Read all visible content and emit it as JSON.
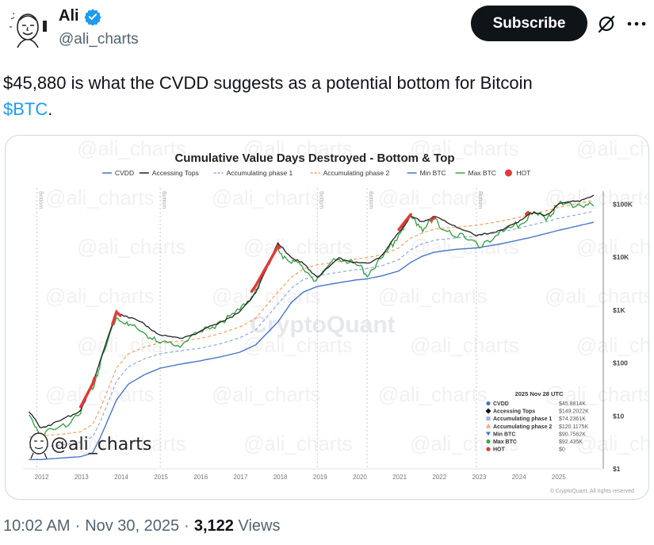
{
  "author": {
    "display_name": "Ali",
    "handle": "@ali_charts",
    "verified": true,
    "avatar_icon": "cartoon-face-avatar"
  },
  "header": {
    "subscribe_label": "Subscribe",
    "grok_icon": "grok-icon",
    "more_icon": "more-options-icon"
  },
  "tweet": {
    "text": "$45,880 is what the CVDD suggests as a potential bottom for Bitcoin",
    "cashtag": "$BTC",
    "text_suffix": "."
  },
  "meta": {
    "time": "10:02 AM",
    "date": "Nov 30, 2025",
    "separator": "·",
    "views_count": "3,122",
    "views_label": "Views"
  },
  "chart_data": {
    "type": "line",
    "title": "Cumulative Value Days Destroyed - Bottom & Top",
    "xlabel": "",
    "ylabel": "",
    "y_scale": "log",
    "ylim": [
      1,
      250000
    ],
    "grid": false,
    "legend_position": "top",
    "legend": [
      {
        "name": "CVDD",
        "color": "#4a74c9",
        "style": "solid"
      },
      {
        "name": "Accessing Tops",
        "color": "#222222",
        "style": "solid"
      },
      {
        "name": "Accumulating phase 1",
        "color": "#8fa8dc",
        "style": "dashed"
      },
      {
        "name": "Accumulating phase 2",
        "color": "#f0a060",
        "style": "dashed"
      },
      {
        "name": "Min BTC",
        "color": "#4a74c9",
        "style": "solid"
      },
      {
        "name": "Max BTC",
        "color": "#3ea34a",
        "style": "solid"
      },
      {
        "name": "HOT",
        "color": "#e03a3a",
        "style": "marker"
      }
    ],
    "x_ticks": [
      "2012",
      "2013",
      "2014",
      "2015",
      "2016",
      "2017",
      "2018",
      "2019",
      "2020",
      "2021",
      "2022",
      "2023",
      "2024",
      "2025"
    ],
    "y_ticks": [
      "$1",
      "$10",
      "$100",
      "$1K",
      "$10K",
      "$100K"
    ],
    "bottom_markers": [
      {
        "label": "Bottom",
        "x": "2011.9"
      },
      {
        "label": "Bottom",
        "x": "2015.0"
      },
      {
        "label": "Bottom",
        "x": "2018.95"
      },
      {
        "label": "Bottom",
        "x": "2020.2"
      },
      {
        "label": "Bottom",
        "x": "2022.95"
      }
    ],
    "x": [
      2011.7,
      2012.0,
      2012.5,
      2013.0,
      2013.3,
      2013.5,
      2013.9,
      2014.2,
      2014.6,
      2015.0,
      2015.5,
      2016.0,
      2016.5,
      2017.0,
      2017.4,
      2017.96,
      2018.3,
      2018.6,
      2018.95,
      2019.5,
      2019.9,
      2020.2,
      2020.6,
      2021.0,
      2021.3,
      2021.6,
      2021.9,
      2022.4,
      2022.95,
      2023.5,
      2024.0,
      2024.3,
      2024.7,
      2025.0,
      2025.5,
      2025.9
    ],
    "series": [
      {
        "name": "CVDD",
        "values": [
          1.5,
          1.5,
          1.6,
          1.7,
          2,
          4,
          20,
          40,
          60,
          80,
          95,
          110,
          130,
          160,
          220,
          600,
          1400,
          2200,
          2800,
          3300,
          3700,
          3900,
          4500,
          5500,
          8000,
          10500,
          12500,
          14000,
          15000,
          17500,
          21000,
          23500,
          28000,
          32000,
          39000,
          45881
        ]
      },
      {
        "name": "Accessing Tops",
        "values": [
          12,
          6,
          8,
          13,
          40,
          120,
          900,
          750,
          550,
          330,
          300,
          380,
          600,
          900,
          2200,
          18000,
          10000,
          7500,
          4200,
          9500,
          8000,
          7500,
          11000,
          30000,
          58000,
          48000,
          58000,
          40000,
          25000,
          32000,
          45000,
          70000,
          60000,
          100000,
          115000,
          149202
        ]
      },
      {
        "name": "Accumulating phase 1",
        "values": [
          2.5,
          2.6,
          2.8,
          3.2,
          4,
          8,
          45,
          85,
          120,
          150,
          170,
          190,
          230,
          300,
          420,
          1300,
          2600,
          3800,
          4500,
          5200,
          5800,
          6100,
          7000,
          9000,
          14000,
          18000,
          21000,
          23000,
          25000,
          29000,
          35000,
          40000,
          47000,
          54000,
          64000,
          74236
        ]
      },
      {
        "name": "Accumulating phase 2",
        "values": [
          4,
          4.2,
          4.5,
          5,
          7,
          14,
          80,
          150,
          200,
          240,
          260,
          290,
          360,
          480,
          700,
          2200,
          4200,
          6000,
          7200,
          8300,
          9200,
          9800,
          11200,
          15000,
          23000,
          29000,
          34000,
          37000,
          40000,
          47000,
          56000,
          64000,
          75000,
          87000,
          103000,
          120118
        ]
      },
      {
        "name": "Max BTC",
        "values": [
          10,
          4.5,
          6,
          13,
          35,
          100,
          800,
          500,
          380,
          220,
          240,
          360,
          620,
          950,
          2500,
          14000,
          8000,
          6200,
          3500,
          10500,
          7200,
          5000,
          9500,
          29000,
          56000,
          37000,
          48000,
          29000,
          16500,
          27000,
          42000,
          66000,
          58000,
          96000,
          104000,
          92435
        ]
      },
      {
        "name": "HOT",
        "values": [
          0,
          0,
          0,
          0,
          0,
          0,
          0,
          0,
          0,
          0,
          0,
          0,
          0,
          0,
          0,
          0,
          0,
          0,
          0,
          0,
          0,
          0,
          0,
          0,
          0,
          0,
          0,
          0,
          0,
          0,
          0,
          0,
          0,
          0,
          0,
          0
        ]
      }
    ],
    "hot_periods": [
      {
        "from": 2013.0,
        "to": 2013.35
      },
      {
        "from": 2013.8,
        "to": 2014.0
      },
      {
        "from": 2017.3,
        "to": 2018.0
      },
      {
        "from": 2021.0,
        "to": 2021.3
      },
      {
        "from": 2021.8,
        "to": 2021.9
      },
      {
        "from": 2024.2,
        "to": 2024.25
      }
    ],
    "tooltip": {
      "date": "2025 Nov 28 UTC",
      "rows": [
        {
          "label": "CVDD",
          "value": "$45.8814K",
          "marker": "circle",
          "color": "#4a74c9"
        },
        {
          "label": "Accessing Tops",
          "value": "$149.2022K",
          "marker": "diamond",
          "color": "#111111"
        },
        {
          "label": "Accumulating phase 1",
          "value": "$74.2361K",
          "marker": "square",
          "color": "#9fb2e0"
        },
        {
          "label": "Accumulating phase 2",
          "value": "$120.1175K",
          "marker": "triangle-up",
          "color": "#f0a878"
        },
        {
          "label": "Min BTC",
          "value": "$90.7562K",
          "marker": "triangle-down",
          "color": "#4a74c9"
        },
        {
          "label": "Max BTC",
          "value": "$92.435K",
          "marker": "circle",
          "color": "#3ea34a"
        },
        {
          "label": "HOT",
          "value": "$0",
          "marker": "circle",
          "color": "#e03a3a"
        }
      ]
    },
    "watermarks": [
      "CryptoQuant",
      "@ali_charts"
    ],
    "copyright": "© CryptoQuant. All rights reserved",
    "signature": "@ali_charts"
  }
}
